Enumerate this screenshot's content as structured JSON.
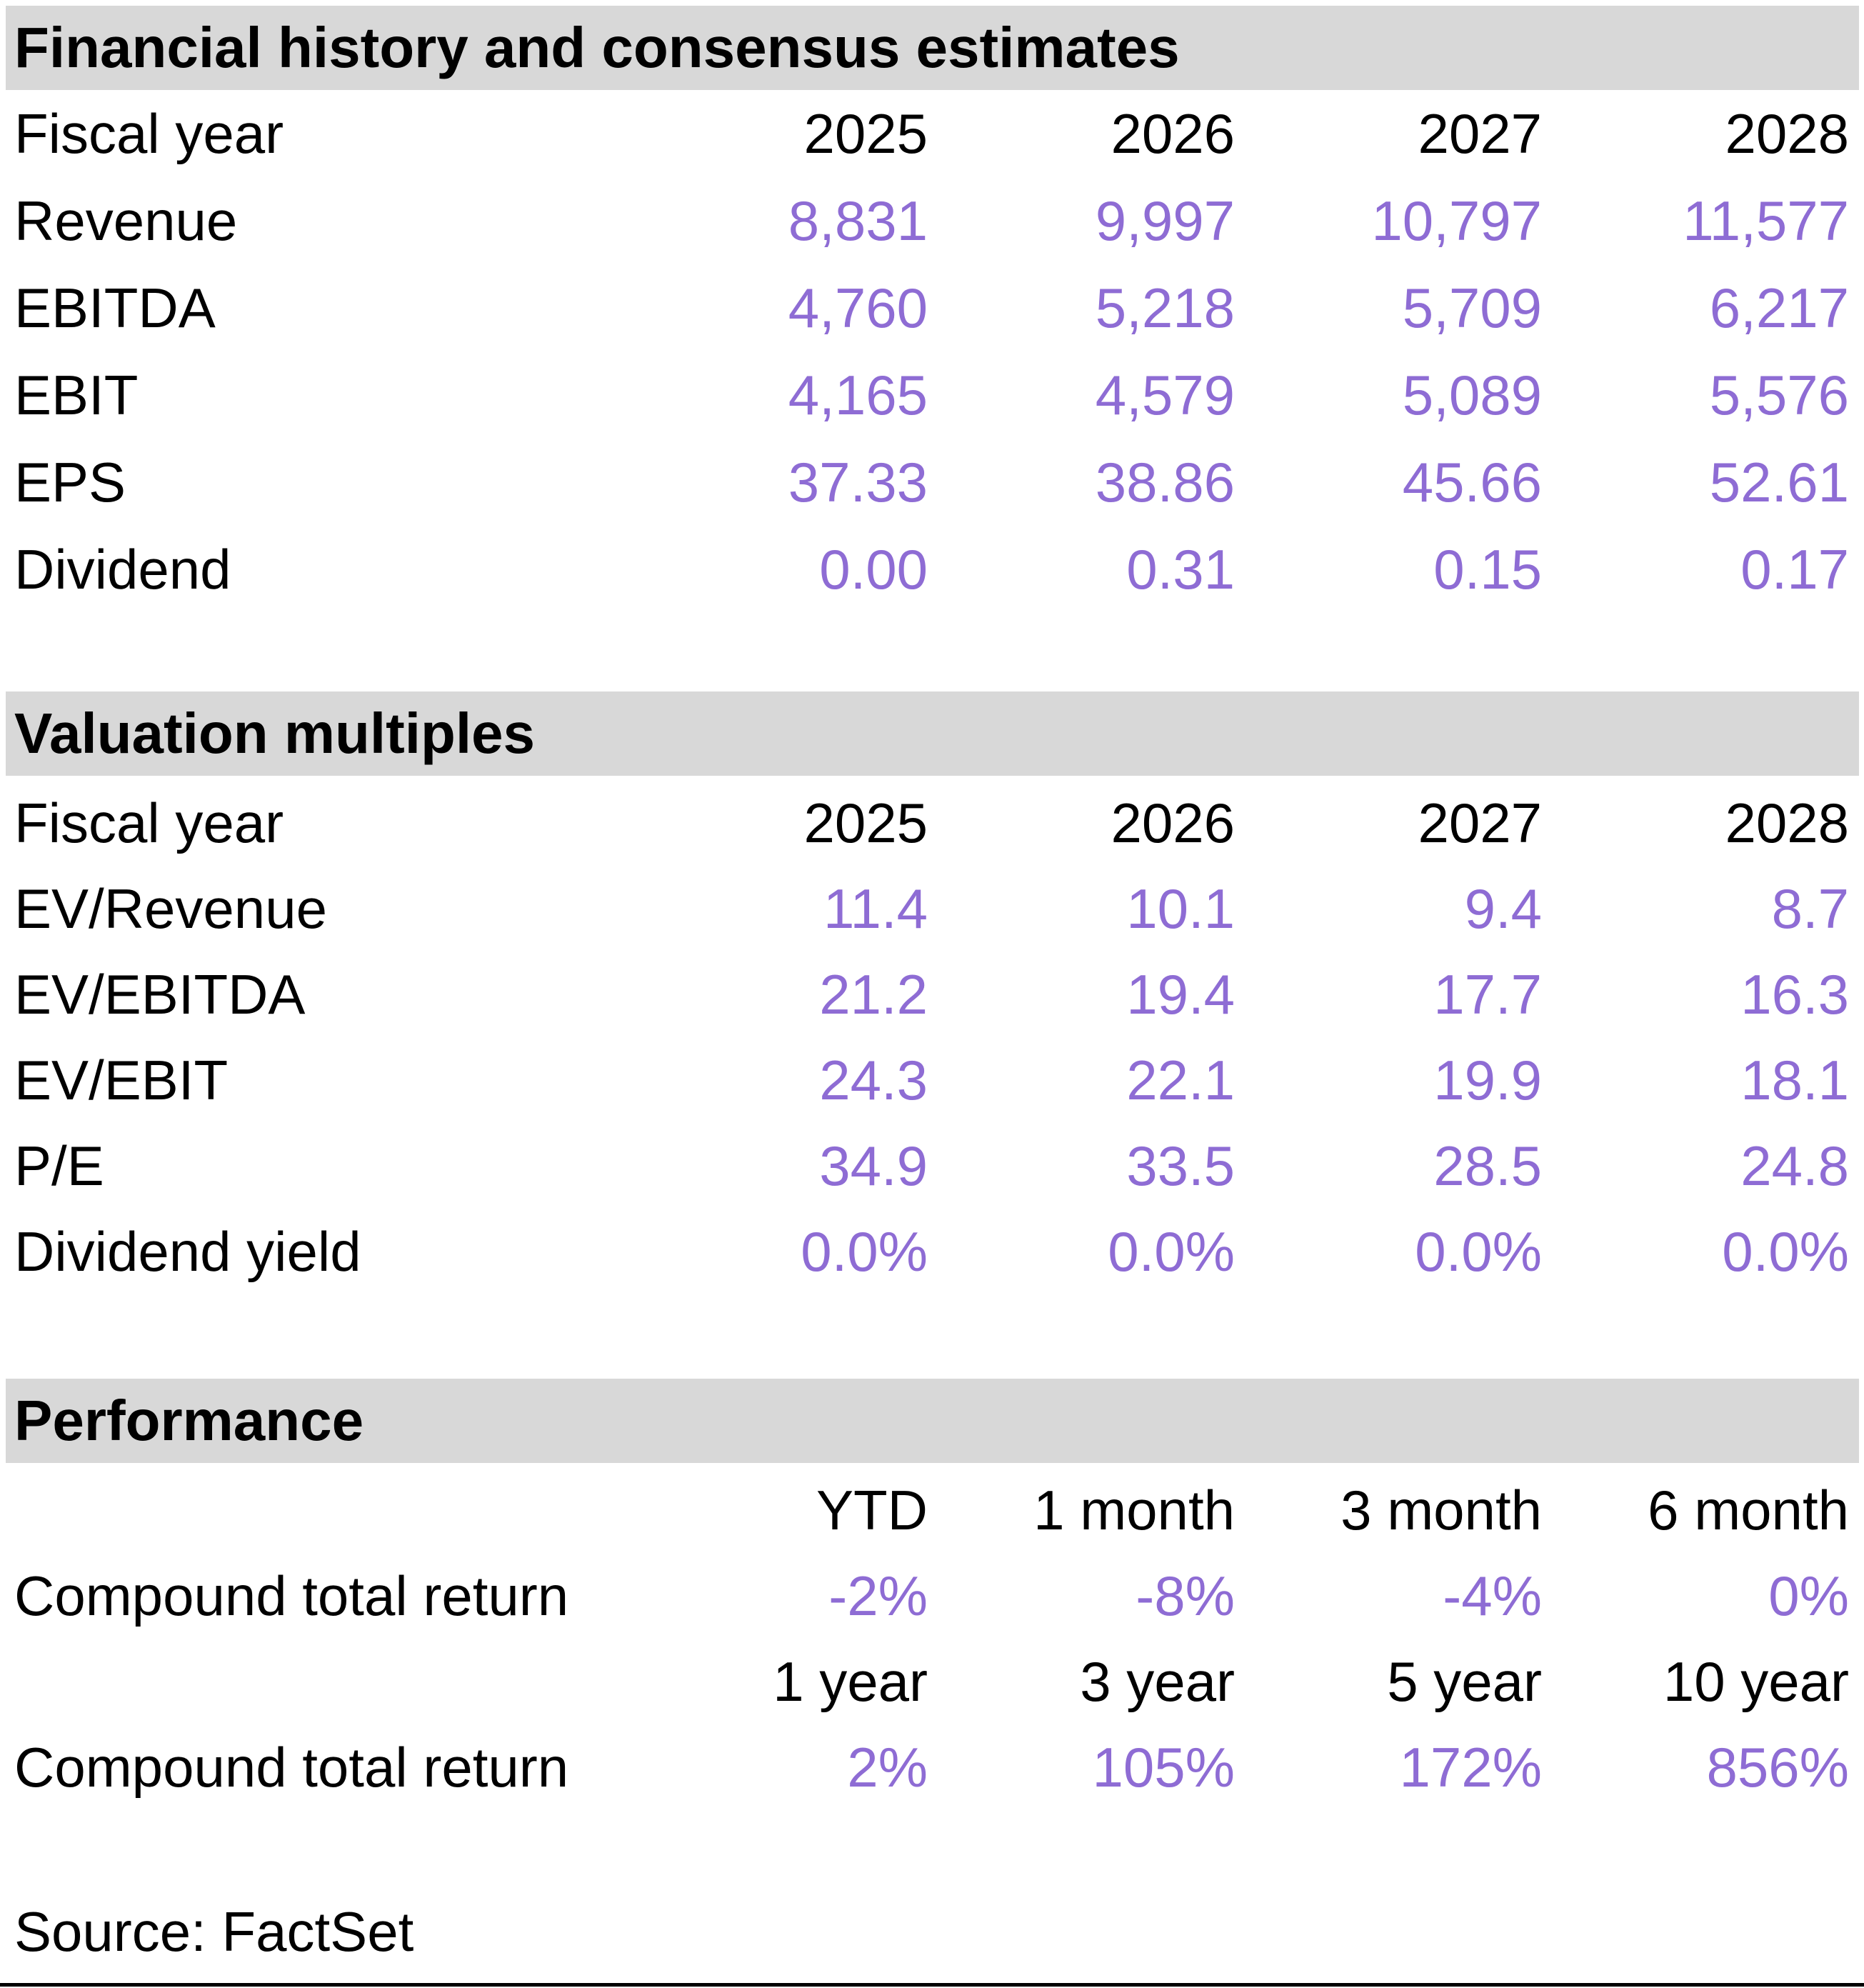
{
  "colors": {
    "value_purple": "#8E6CD4",
    "header_band_gray": "#D8D8D8",
    "text_black": "#000000"
  },
  "sections": {
    "financial": {
      "title": "Financial history and consensus estimates",
      "header": {
        "label": "Fiscal year",
        "cols": [
          "2025",
          "2026",
          "2027",
          "2028"
        ]
      },
      "rows": [
        {
          "label": "Revenue",
          "values": [
            "8,831",
            "9,997",
            "10,797",
            "11,577"
          ]
        },
        {
          "label": "EBITDA",
          "values": [
            "4,760",
            "5,218",
            "5,709",
            "6,217"
          ]
        },
        {
          "label": "EBIT",
          "values": [
            "4,165",
            "4,579",
            "5,089",
            "5,576"
          ]
        },
        {
          "label": "EPS",
          "values": [
            "37.33",
            "38.86",
            "45.66",
            "52.61"
          ]
        },
        {
          "label": "Dividend",
          "values": [
            "0.00",
            "0.31",
            "0.15",
            "0.17"
          ]
        }
      ]
    },
    "valuation": {
      "title": "Valuation multiples",
      "header": {
        "label": "Fiscal year",
        "cols": [
          "2025",
          "2026",
          "2027",
          "2028"
        ]
      },
      "rows": [
        {
          "label": "EV/Revenue",
          "values": [
            "11.4",
            "10.1",
            "9.4",
            "8.7"
          ]
        },
        {
          "label": "EV/EBITDA",
          "values": [
            "21.2",
            "19.4",
            "17.7",
            "16.3"
          ]
        },
        {
          "label": "EV/EBIT",
          "values": [
            "24.3",
            "22.1",
            "19.9",
            "18.1"
          ]
        },
        {
          "label": "P/E",
          "values": [
            "34.9",
            "33.5",
            "28.5",
            "24.8"
          ]
        },
        {
          "label": "Dividend yield",
          "values": [
            "0.0%",
            "0.0%",
            "0.0%",
            "0.0%"
          ]
        }
      ]
    },
    "performance": {
      "title": "Performance",
      "groups": [
        {
          "header_cols": [
            "YTD",
            "1 month",
            "3 month",
            "6 month"
          ],
          "row_label": "Compound total return",
          "values": [
            "-2%",
            "-8%",
            "-4%",
            "0%"
          ]
        },
        {
          "header_cols": [
            "1 year",
            "3 year",
            "5 year",
            "10 year"
          ],
          "row_label": "Compound total return",
          "values": [
            "2%",
            "105%",
            "172%",
            "856%"
          ]
        }
      ]
    }
  },
  "page": {
    "source_note": "Source: FactSet"
  }
}
